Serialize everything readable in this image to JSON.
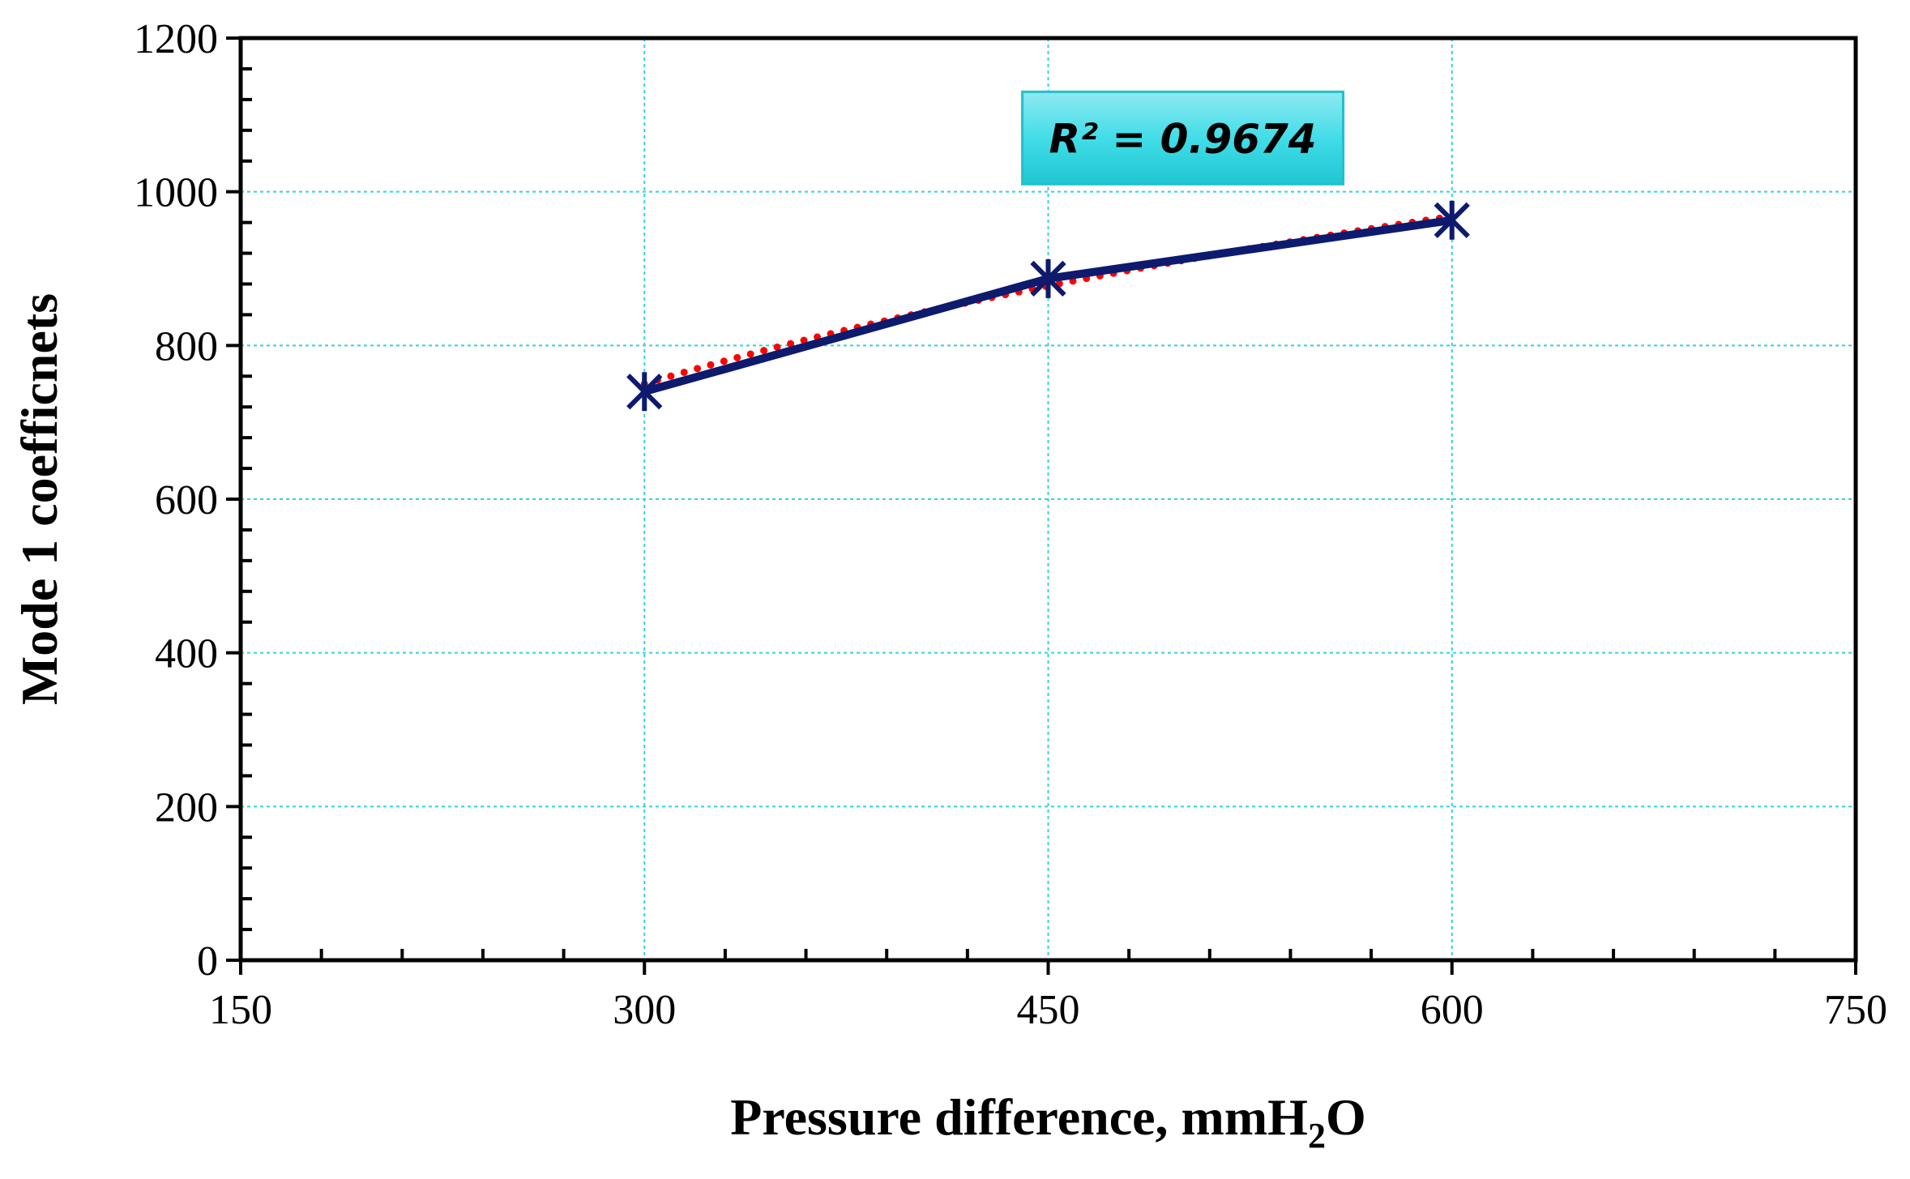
{
  "chart_data": {
    "type": "line",
    "title": "",
    "xlabel_main": "Pressure difference, mmH",
    "xlabel_sub": "2",
    "xlabel_tail": "O",
    "ylabel": "Mode 1 coefficnets",
    "xlim": [
      150,
      750
    ],
    "ylim": [
      0,
      1200
    ],
    "x_ticks": [
      150,
      300,
      450,
      600,
      750
    ],
    "y_ticks": [
      0,
      200,
      400,
      600,
      800,
      1000,
      1200
    ],
    "x_tick_labels": [
      "150",
      "300",
      "450",
      "600",
      "750"
    ],
    "y_tick_labels": [
      "0",
      "200",
      "400",
      "600",
      "800",
      "1000",
      "1200"
    ],
    "x_grid": [
      300,
      450,
      600
    ],
    "y_grid": [
      200,
      400,
      600,
      800,
      1000
    ],
    "series": [
      {
        "name": "Mode 1",
        "x": [
          300,
          450,
          600
        ],
        "values": [
          740,
          887,
          963
        ],
        "color": "#0d1a6e",
        "marker": "asterisk"
      }
    ],
    "trendline": {
      "type": "logarithmic",
      "x": [
        300,
        450,
        600
      ],
      "values": [
        750,
        866,
        968
      ],
      "color": "#ff0000",
      "style": "dotted"
    },
    "annotation": {
      "text": "R² = 0.9674",
      "x": 500,
      "y": 1070,
      "fill": "#3de0ea",
      "border": "#22c0cc"
    },
    "grid_color": "#2fd4e0",
    "axis_color": "#000000"
  }
}
